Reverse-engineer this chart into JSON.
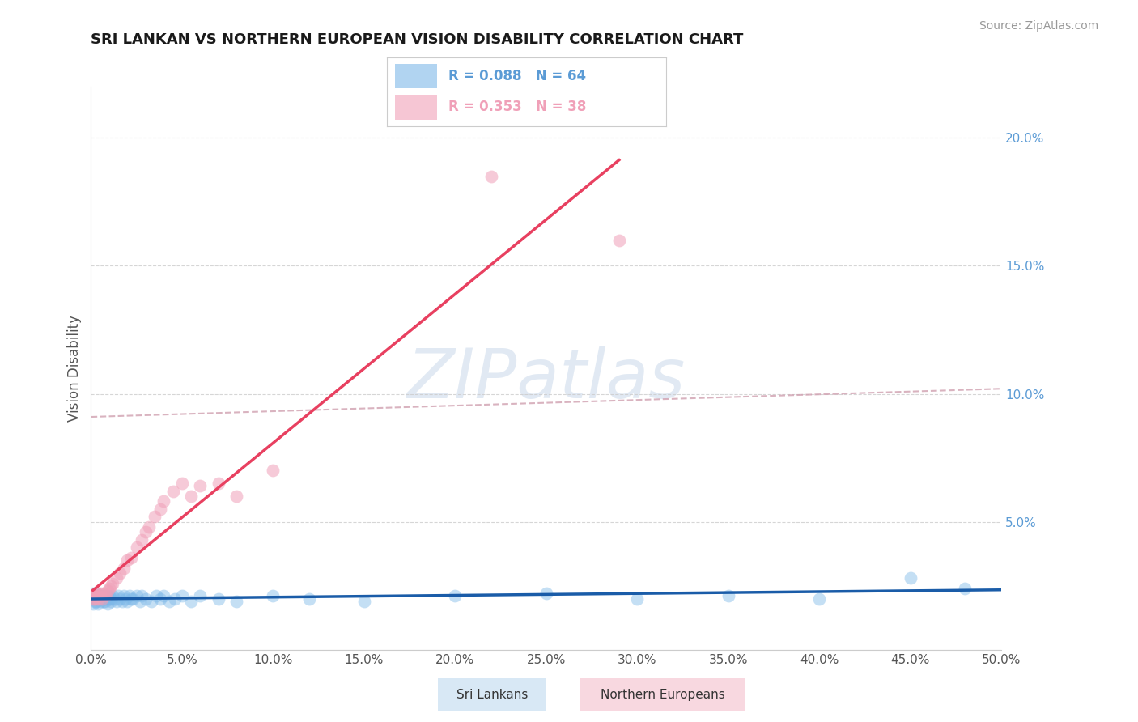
{
  "title": "SRI LANKAN VS NORTHERN EUROPEAN VISION DISABILITY CORRELATION CHART",
  "source_text": "Source: ZipAtlas.com",
  "ylabel": "Vision Disability",
  "legend_r_blue": "R = 0.088",
  "legend_n_blue": "N = 64",
  "legend_r_pink": "R = 0.353",
  "legend_n_pink": "N = 38",
  "label_sri": "Sri Lankans",
  "label_nor": "Northern Europeans",
  "blue_scatter": "#7EB8E8",
  "pink_scatter": "#F0A0B8",
  "blue_line": "#1A5CA8",
  "pink_line": "#E84060",
  "dashed_line_color": "#D0A0B0",
  "grid_color": "#CCCCCC",
  "right_axis_color": "#5B9BD5",
  "watermark": "ZIPatlas",
  "xlim": [
    0.0,
    0.5
  ],
  "ylim": [
    0.0,
    0.22
  ],
  "yticks": [
    0.0,
    0.05,
    0.1,
    0.15,
    0.2
  ],
  "ytick_labels": [
    "",
    "5.0%",
    "10.0%",
    "15.0%",
    "20.0%"
  ],
  "xticks": [
    0.0,
    0.05,
    0.1,
    0.15,
    0.2,
    0.25,
    0.3,
    0.35,
    0.4,
    0.45,
    0.5
  ],
  "xtick_labels": [
    "0.0%",
    "5.0%",
    "10.0%",
    "15.0%",
    "20.0%",
    "25.0%",
    "30.0%",
    "35.0%",
    "40.0%",
    "45.0%",
    "50.0%"
  ],
  "sri_x": [
    0.001,
    0.001,
    0.001,
    0.002,
    0.002,
    0.002,
    0.003,
    0.003,
    0.003,
    0.004,
    0.004,
    0.004,
    0.005,
    0.005,
    0.005,
    0.006,
    0.006,
    0.007,
    0.007,
    0.008,
    0.008,
    0.009,
    0.009,
    0.01,
    0.01,
    0.011,
    0.011,
    0.012,
    0.013,
    0.014,
    0.015,
    0.016,
    0.017,
    0.018,
    0.019,
    0.02,
    0.021,
    0.022,
    0.023,
    0.025,
    0.027,
    0.028,
    0.03,
    0.033,
    0.036,
    0.038,
    0.04,
    0.043,
    0.046,
    0.05,
    0.055,
    0.06,
    0.07,
    0.08,
    0.1,
    0.12,
    0.15,
    0.2,
    0.25,
    0.3,
    0.35,
    0.4,
    0.45,
    0.48
  ],
  "sri_y": [
    0.02,
    0.022,
    0.018,
    0.02,
    0.019,
    0.021,
    0.021,
    0.019,
    0.022,
    0.02,
    0.018,
    0.021,
    0.02,
    0.021,
    0.019,
    0.02,
    0.021,
    0.019,
    0.021,
    0.02,
    0.019,
    0.021,
    0.018,
    0.02,
    0.021,
    0.02,
    0.019,
    0.021,
    0.02,
    0.019,
    0.021,
    0.02,
    0.019,
    0.021,
    0.02,
    0.019,
    0.021,
    0.02,
    0.02,
    0.021,
    0.019,
    0.021,
    0.02,
    0.019,
    0.021,
    0.02,
    0.021,
    0.019,
    0.02,
    0.021,
    0.019,
    0.021,
    0.02,
    0.019,
    0.021,
    0.02,
    0.019,
    0.021,
    0.022,
    0.02,
    0.021,
    0.02,
    0.028,
    0.024
  ],
  "nor_x": [
    0.001,
    0.001,
    0.002,
    0.002,
    0.003,
    0.003,
    0.004,
    0.004,
    0.005,
    0.005,
    0.006,
    0.007,
    0.008,
    0.009,
    0.01,
    0.011,
    0.012,
    0.014,
    0.016,
    0.018,
    0.02,
    0.022,
    0.025,
    0.028,
    0.03,
    0.032,
    0.035,
    0.038,
    0.04,
    0.045,
    0.05,
    0.055,
    0.06,
    0.07,
    0.08,
    0.1,
    0.22,
    0.29
  ],
  "nor_y": [
    0.02,
    0.021,
    0.02,
    0.021,
    0.021,
    0.022,
    0.02,
    0.021,
    0.021,
    0.022,
    0.02,
    0.022,
    0.021,
    0.023,
    0.024,
    0.025,
    0.026,
    0.028,
    0.03,
    0.032,
    0.035,
    0.036,
    0.04,
    0.043,
    0.046,
    0.048,
    0.052,
    0.055,
    0.058,
    0.062,
    0.065,
    0.06,
    0.064,
    0.065,
    0.06,
    0.07,
    0.185,
    0.16
  ]
}
